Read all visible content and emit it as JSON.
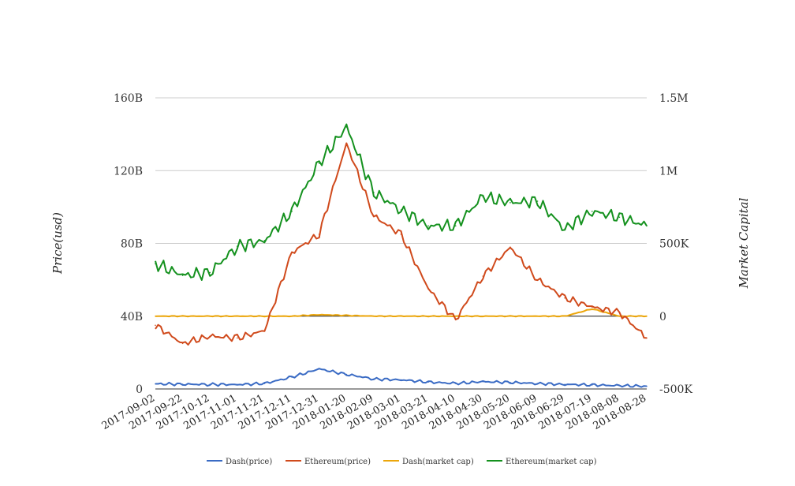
{
  "chart_data": {
    "type": "line",
    "title": "",
    "xlabel": "",
    "ylabel": "Price(usd)",
    "y2label": "Market Capital",
    "ylim": [
      0,
      160000000000
    ],
    "y2lim": [
      -500000,
      1500000
    ],
    "grid": true,
    "legend_position": "bottom",
    "x": [
      "2017-09-02",
      "2017-09-22",
      "2017-10-12",
      "2017-11-01",
      "2017-11-21",
      "2017-12-11",
      "2017-12-31",
      "2018-01-20",
      "2018-02-09",
      "2018-03-01",
      "2018-03-21",
      "2018-04-10",
      "2018-04-30",
      "2018-05-20",
      "2018-06-09",
      "2018-06-29",
      "2018-07-19",
      "2018-08-08",
      "2018-08-28"
    ],
    "x_ticks": [
      "2017-09-02",
      "2017-09-22",
      "2017-10-12",
      "2017-11-01",
      "2017-11-21",
      "2017-12-11",
      "2017-12-31",
      "2018-01-20",
      "2018-02-09",
      "2018-03-01",
      "2018-03-21",
      "2018-04-10",
      "2018-04-30",
      "2018-05-20",
      "2018-06-09",
      "2018-06-29",
      "2018-07-19",
      "2018-08-08",
      "2018-08-28"
    ],
    "y_ticks": [
      "0",
      "40B",
      "80B",
      "120B",
      "160B"
    ],
    "y2_ticks": [
      "-500K",
      "0",
      "500K",
      "1M",
      "1.5M"
    ],
    "series": [
      {
        "name": "Dash(price)",
        "axis": "left",
        "color": "#3a6bc4",
        "values": [
          2800000000,
          2600000000,
          2500000000,
          2400000000,
          3000000000,
          6500000000,
          11000000000,
          8000000000,
          5500000000,
          5000000000,
          3800000000,
          3000000000,
          4000000000,
          3600000000,
          3000000000,
          2500000000,
          2200000000,
          1800000000,
          1500000000
        ]
      },
      {
        "name": "Ethereum(price)",
        "axis": "left",
        "color": "#d04a1c",
        "values": [
          35000000000,
          25000000000,
          29000000000,
          28000000000,
          32000000000,
          75000000000,
          85000000000,
          135000000000,
          95000000000,
          85000000000,
          55000000000,
          38000000000,
          62000000000,
          78000000000,
          60000000000,
          50000000000,
          45000000000,
          42000000000,
          28000000000
        ]
      },
      {
        "name": "Dash(market cap)",
        "axis": "right",
        "color": "#eca60b",
        "values": [
          0,
          0,
          0,
          0,
          0,
          0,
          10000,
          5000,
          0,
          0,
          0,
          0,
          0,
          0,
          0,
          0,
          50000,
          0,
          0
        ]
      },
      {
        "name": "Ethereum(market cap)",
        "axis": "right",
        "color": "#14911e",
        "values": [
          360000,
          280000,
          300000,
          480000,
          520000,
          720000,
          1050000,
          1300000,
          850000,
          730000,
          620000,
          620000,
          820000,
          780000,
          790000,
          600000,
          720000,
          680000,
          620000
        ]
      }
    ]
  }
}
